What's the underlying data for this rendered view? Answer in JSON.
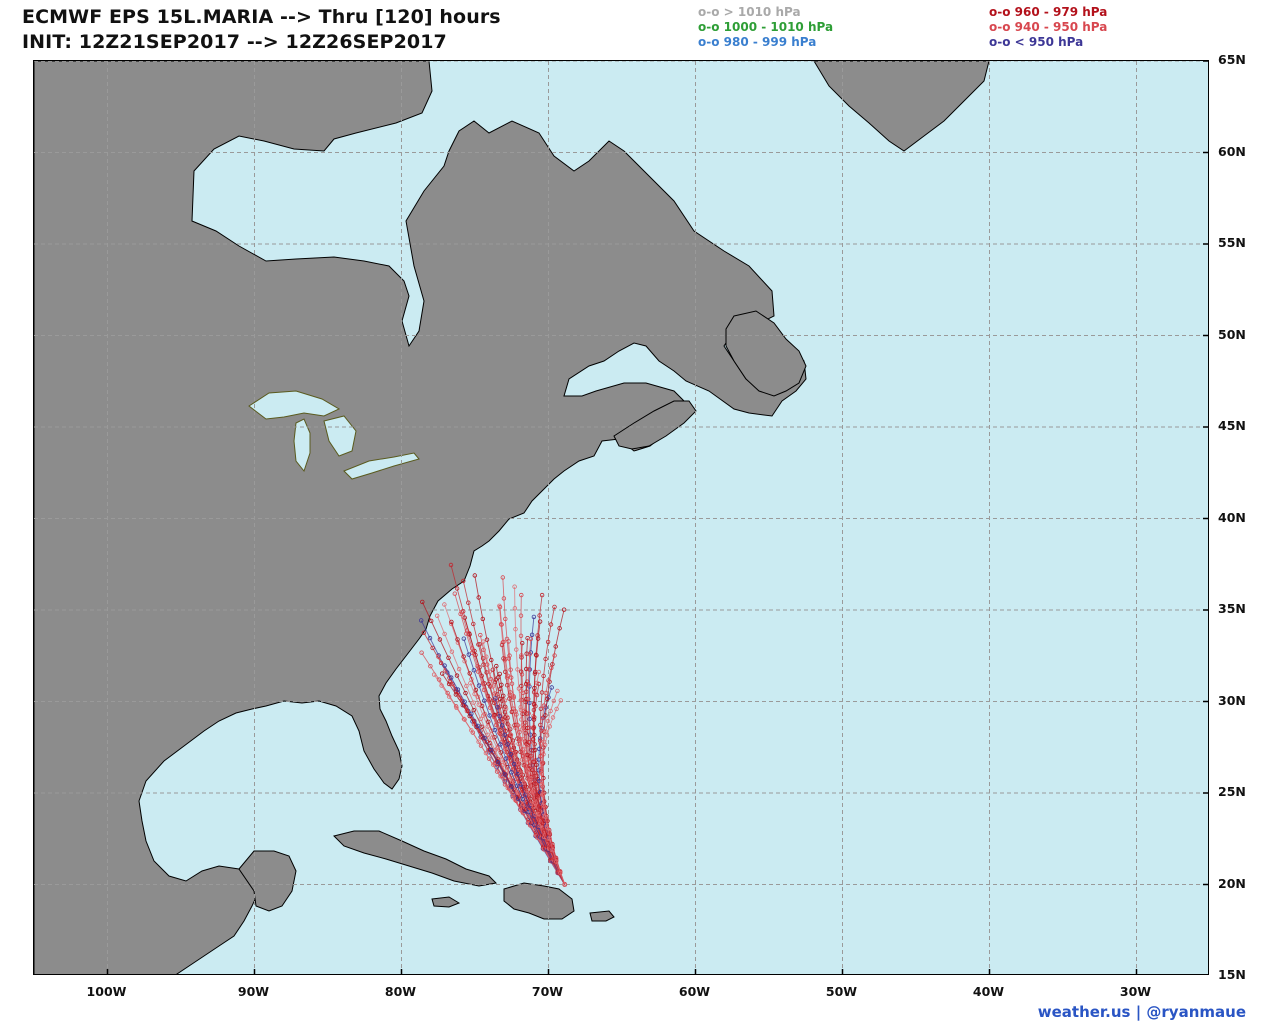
{
  "title": {
    "line1": "ECMWF EPS 15L.MARIA --> Thru [120] hours",
    "line2": "INIT: 12Z21SEP2017 --> 12Z26SEP2017"
  },
  "legend": {
    "left": [
      {
        "label": "o-o > 1010 hPa",
        "color": "#a9a9a9"
      },
      {
        "label": "o-o 1000 - 1010 hPa",
        "color": "#2e9e36"
      },
      {
        "label": "o-o 980 - 999 hPa",
        "color": "#3a7fcf"
      }
    ],
    "right": [
      {
        "label": "o-o 960 - 979 hPa",
        "color": "#b3111b"
      },
      {
        "label": "o-o 940 - 950 hPa",
        "color": "#d8474f"
      },
      {
        "label": "o-o < 950 hPa",
        "color": "#3d3796"
      }
    ]
  },
  "axes": {
    "lat_labels": [
      "65N",
      "60N",
      "55N",
      "50N",
      "45N",
      "40N",
      "35N",
      "30N",
      "25N",
      "20N",
      "15N"
    ],
    "lat_values": [
      65,
      60,
      55,
      50,
      45,
      40,
      35,
      30,
      25,
      20,
      15
    ],
    "lon_labels": [
      "100W",
      "90W",
      "80W",
      "70W",
      "60W",
      "50W",
      "40W",
      "30W"
    ],
    "lon_values": [
      -100,
      -90,
      -80,
      -70,
      -60,
      -50,
      -40,
      -30
    ],
    "lon_range": [
      -105,
      -25
    ],
    "lat_range": [
      15,
      65
    ],
    "grid": true
  },
  "colors": {
    "ocean": "#cbebf2",
    "land": "#8c8c8c",
    "border": "#000000",
    "grid": "#9a9a9a",
    "lakes_outline": "#5a5a1e"
  },
  "storm": {
    "start": {
      "lon": -68.9,
      "lat": 20.0
    },
    "member_count": 51
  },
  "credit": "weather.us | @ryanmaue"
}
